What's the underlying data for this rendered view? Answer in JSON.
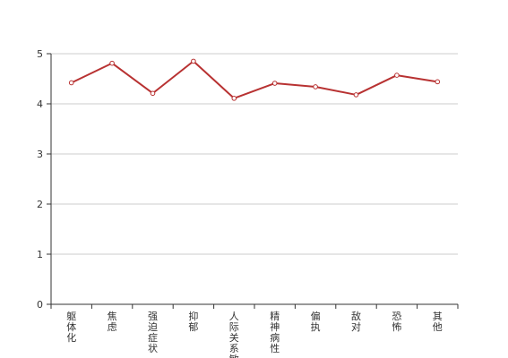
{
  "chart_data": {
    "type": "line",
    "title": "",
    "xlabel": "",
    "ylabel": "",
    "categories": [
      "躯体化",
      "焦虑",
      "强迫症状",
      "抑郁",
      "人际关系敏感",
      "精神病性",
      "偏执",
      "敌对",
      "恐怖",
      "其他"
    ],
    "series": [
      {
        "values": [
          4.42,
          4.81,
          4.21,
          4.85,
          4.11,
          4.41,
          4.34,
          4.18,
          4.57,
          4.44
        ]
      }
    ],
    "ylim": [
      0,
      5
    ],
    "yticks": [
      0,
      1,
      2,
      3,
      4,
      5
    ],
    "grid": true,
    "line_color": "#b83232",
    "grid_color": "#cccccc",
    "axis_color": "#333333"
  }
}
